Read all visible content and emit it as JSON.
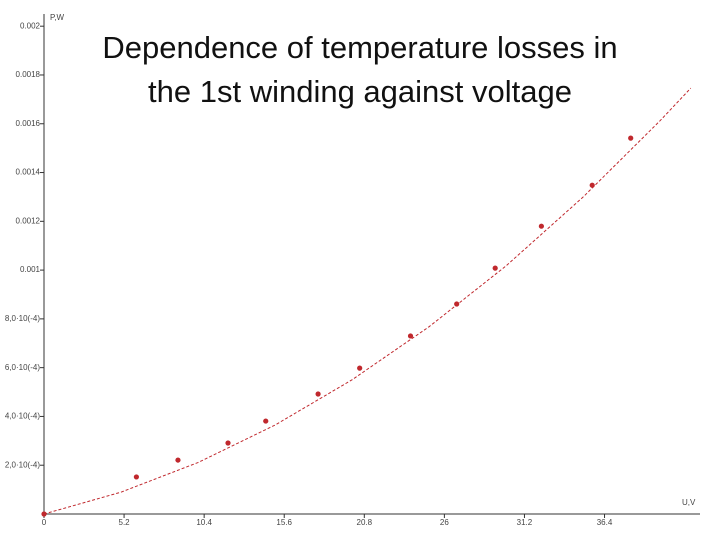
{
  "chart_data": {
    "type": "scatter",
    "title": [
      "Dependence of temperature losses in",
      "the 1st winding against  voltage"
    ],
    "x_label": "U,V",
    "y_label": "P,W",
    "xlim": [
      0,
      42.6
    ],
    "ylim": [
      0,
      0.00205
    ],
    "xticks": [
      0,
      5.2,
      10.4,
      15.6,
      20.8,
      26,
      31.2,
      36.4
    ],
    "yticks": [
      {
        "value": 0.0002,
        "label": "2,0·10(-4)"
      },
      {
        "value": 0.0004,
        "label": "4,0·10(-4)"
      },
      {
        "value": 0.0006,
        "label": "6,0·10(-4)"
      },
      {
        "value": 0.0008,
        "label": "8,0·10(-4)"
      },
      0.001,
      0.0012,
      0.0014,
      0.0016,
      0.0018,
      0.002
    ],
    "series": [
      {
        "color": "#c0282d",
        "x": [
          0,
          6,
          8.7,
          11.95,
          14.4,
          17.8,
          20.5,
          23.8,
          26.8,
          29.3,
          32.3,
          35.6,
          38.1
        ],
        "values": [
          0,
          0.000152,
          0.000221,
          0.000291,
          0.000381,
          0.000492,
          0.000598,
          0.00073,
          0.000861,
          0.001008,
          0.00118,
          0.001348,
          0.001541
        ]
      },
      {
        "color": "#c0282d",
        "style": "dashed",
        "x": [
          0,
          5,
          10,
          15,
          20,
          25,
          30,
          35,
          40,
          42
        ],
        "values": [
          0,
          8.95e-05,
          0.000211,
          0.0003645,
          0.00055,
          0.0007675,
          0.001017,
          0.001299,
          0.001612,
          0.001746
        ]
      }
    ]
  }
}
